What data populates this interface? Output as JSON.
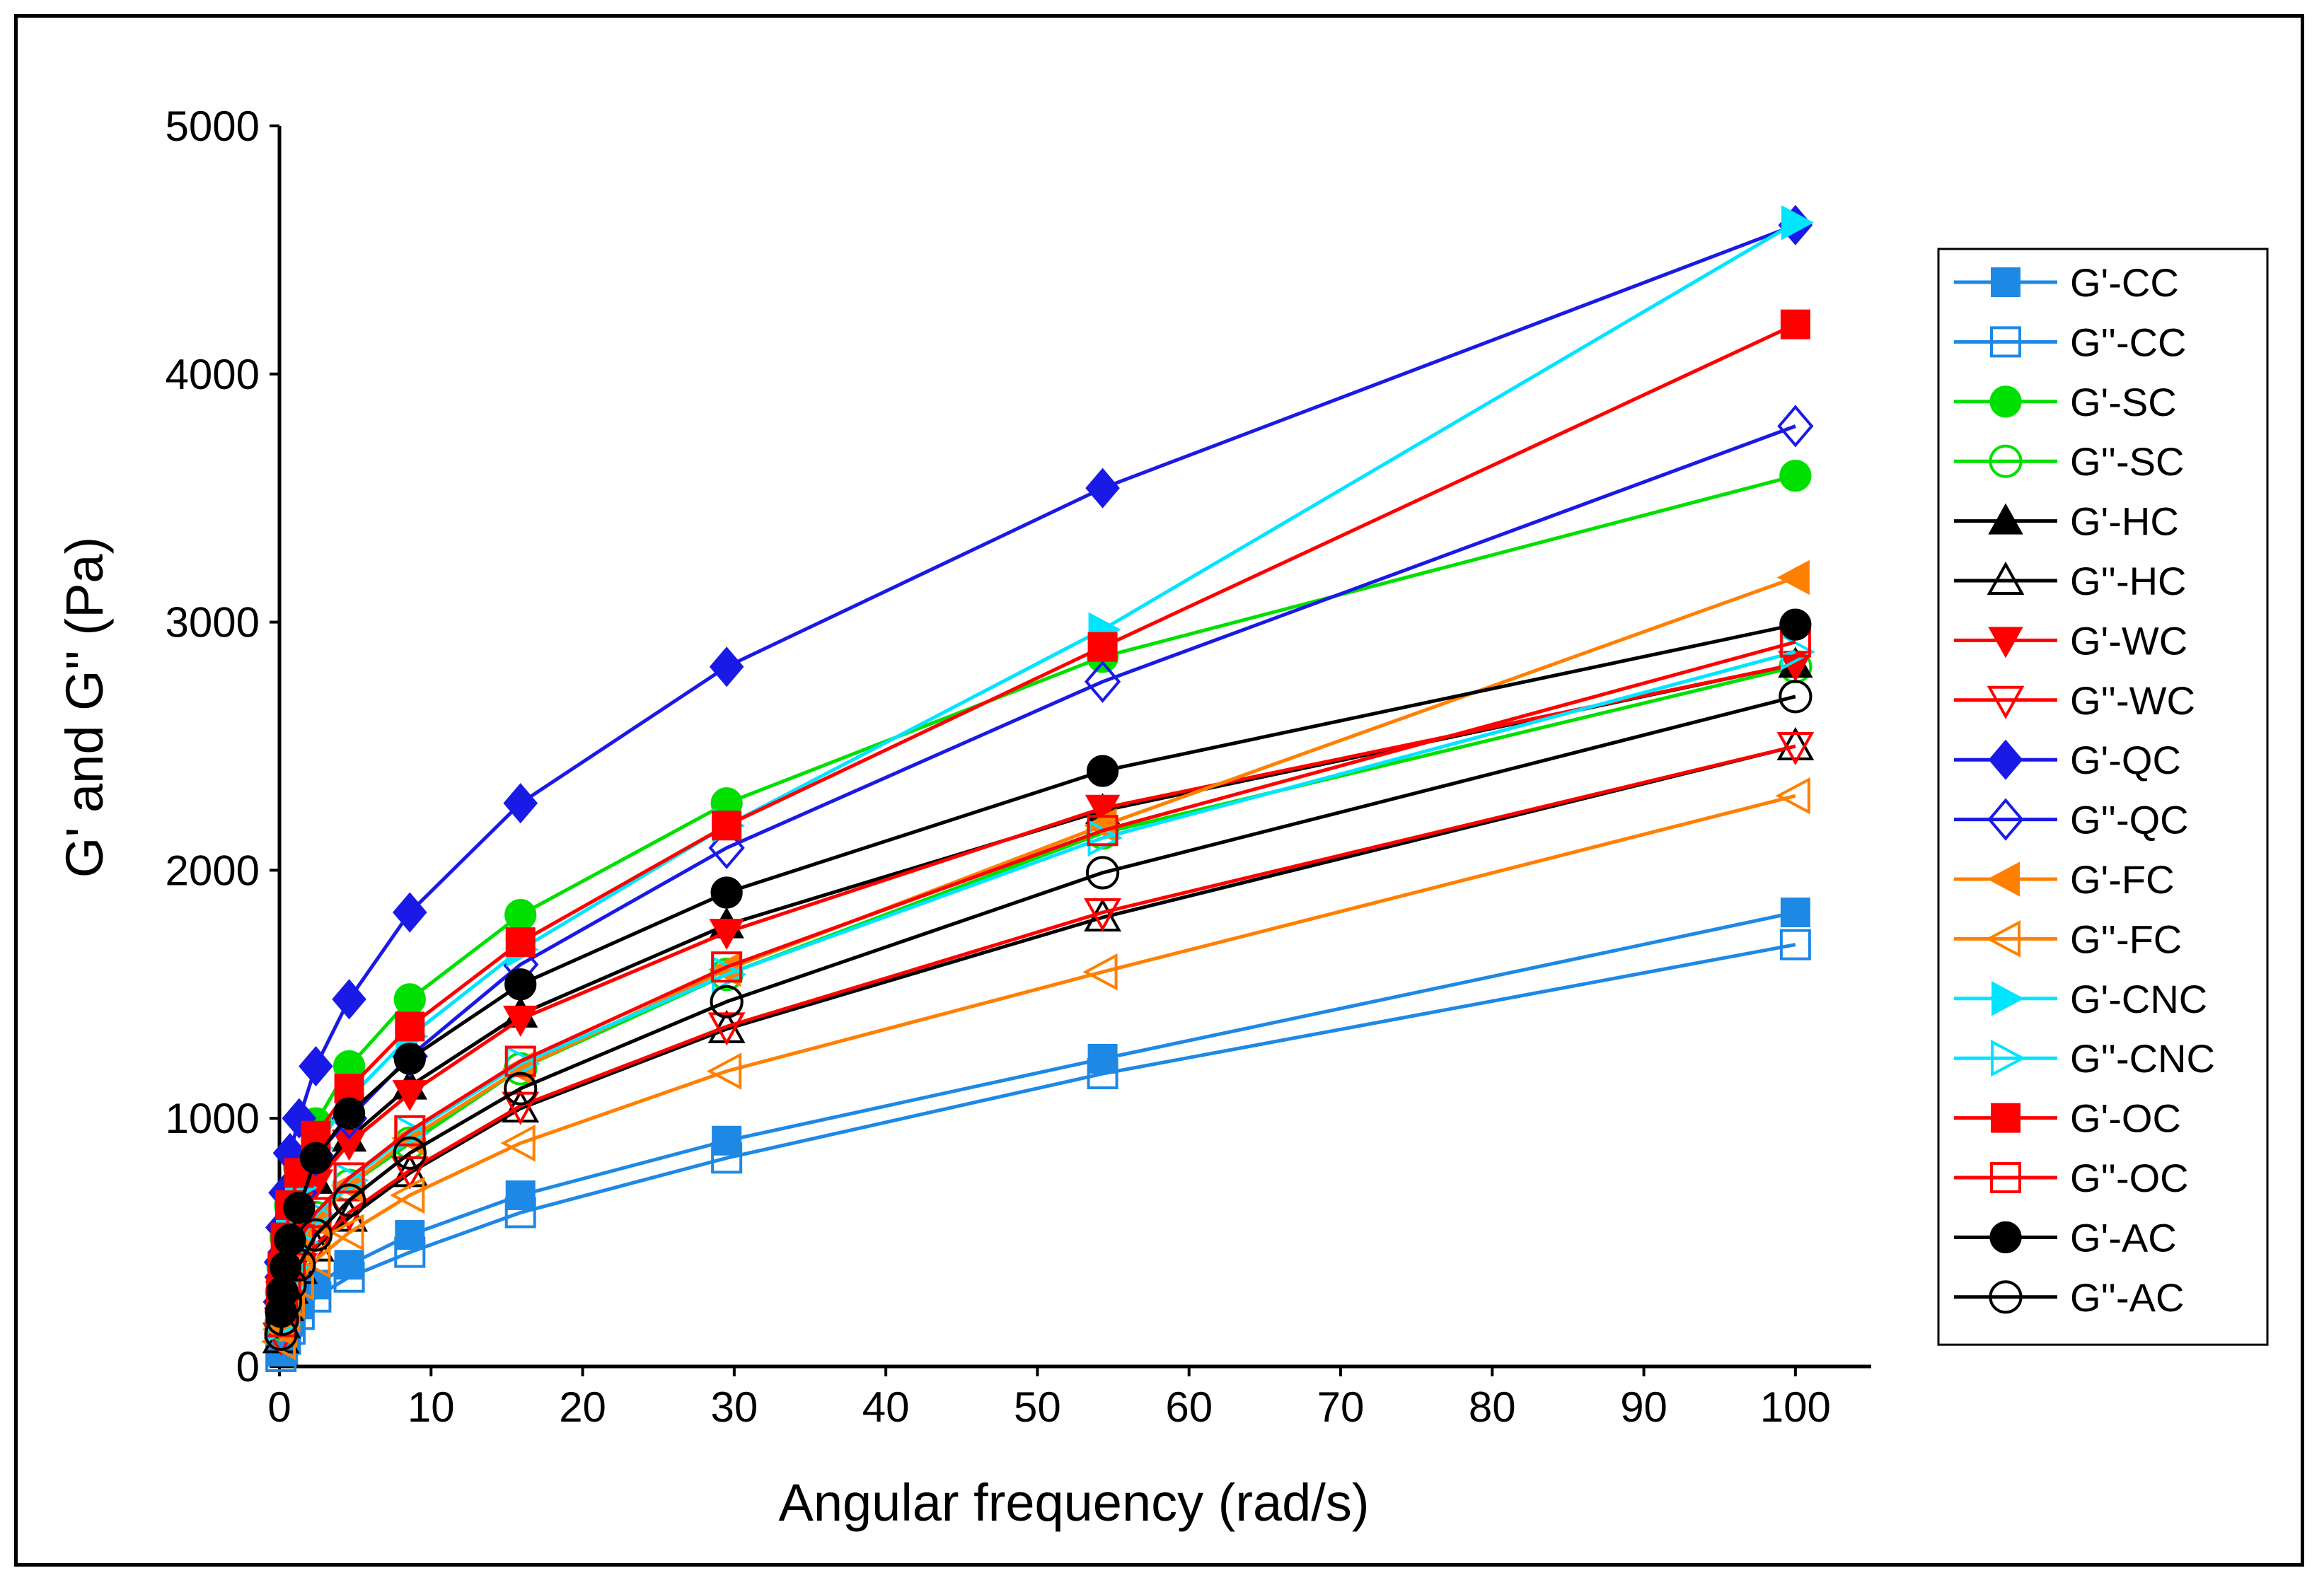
{
  "chart_data": {
    "type": "line",
    "title": "",
    "xlabel": "Angular frequency (rad/s)",
    "ylabel": "G' and G'' (Pa)",
    "xlim": [
      0,
      105
    ],
    "ylim": [
      0,
      5000
    ],
    "xticks": [
      0,
      10,
      20,
      30,
      40,
      50,
      60,
      70,
      80,
      90,
      100
    ],
    "yticks": [
      0,
      1000,
      2000,
      3000,
      4000,
      5000
    ],
    "grid": false,
    "legend_position": "right",
    "x": [
      0.1,
      0.2,
      0.4,
      0.7,
      1.3,
      2.4,
      4.6,
      8.6,
      15.9,
      29.5,
      54.3,
      100
    ],
    "series": [
      {
        "name": "G'-CC",
        "color": "#1e88e5",
        "marker": "square",
        "filled": true,
        "values": [
          60,
          90,
          130,
          180,
          250,
          330,
          410,
          530,
          690,
          910,
          1240,
          1830
        ]
      },
      {
        "name": "G''-CC",
        "color": "#1e88e5",
        "marker": "square",
        "filled": false,
        "values": [
          40,
          70,
          110,
          150,
          210,
          280,
          360,
          460,
          620,
          840,
          1180,
          1700
        ]
      },
      {
        "name": "G'-SC",
        "color": "#00e000",
        "marker": "circle",
        "filled": true,
        "values": [
          300,
          400,
          520,
          650,
          800,
          980,
          1210,
          1480,
          1820,
          2270,
          2860,
          3590
        ]
      },
      {
        "name": "G''-SC",
        "color": "#00e000",
        "marker": "circle",
        "filled": false,
        "values": [
          170,
          240,
          320,
          400,
          500,
          600,
          730,
          900,
          1200,
          1580,
          2150,
          2820
        ]
      },
      {
        "name": "G'-HC",
        "color": "#000000",
        "marker": "triangle-up",
        "filled": true,
        "values": [
          200,
          280,
          380,
          480,
          600,
          750,
          920,
          1130,
          1420,
          1780,
          2240,
          2830
        ]
      },
      {
        "name": "G''-HC",
        "color": "#000000",
        "marker": "triangle-up",
        "filled": false,
        "values": [
          110,
          170,
          240,
          310,
          390,
          480,
          600,
          780,
          1040,
          1360,
          1810,
          2500
        ]
      },
      {
        "name": "G'-WC",
        "color": "#ff0000",
        "marker": "triangle-down",
        "filled": true,
        "values": [
          210,
          290,
          390,
          490,
          610,
          740,
          900,
          1100,
          1400,
          1750,
          2250,
          2830
        ]
      },
      {
        "name": "G''-WC",
        "color": "#ff0000",
        "marker": "triangle-down",
        "filled": false,
        "values": [
          120,
          180,
          250,
          320,
          400,
          490,
          620,
          790,
          1050,
          1370,
          1830,
          2500
        ]
      },
      {
        "name": "G'-QC",
        "color": "#1a1ae6",
        "marker": "diamond",
        "filled": true,
        "values": [
          420,
          560,
          700,
          860,
          1000,
          1210,
          1480,
          1830,
          2270,
          2820,
          3540,
          4600
        ]
      },
      {
        "name": "G''-QC",
        "color": "#1a1ae6",
        "marker": "diamond",
        "filled": false,
        "values": [
          260,
          360,
          460,
          560,
          700,
          850,
          1000,
          1250,
          1620,
          2090,
          2760,
          3790
        ]
      },
      {
        "name": "G'-FC",
        "color": "#ff8000",
        "marker": "triangle-left",
        "filled": true,
        "values": [
          150,
          220,
          300,
          380,
          480,
          590,
          730,
          920,
          1200,
          1600,
          2180,
          3180
        ]
      },
      {
        "name": "G''-FC",
        "color": "#ff8000",
        "marker": "triangle-left",
        "filled": false,
        "values": [
          100,
          150,
          210,
          270,
          340,
          430,
          540,
          690,
          900,
          1190,
          1590,
          2300
        ]
      },
      {
        "name": "G'-CNC",
        "color": "#00e5ff",
        "marker": "triangle-right",
        "filled": true,
        "values": [
          260,
          350,
          460,
          580,
          720,
          880,
          1080,
          1330,
          1680,
          2180,
          2970,
          4610
        ]
      },
      {
        "name": "G''-CNC",
        "color": "#00e5ff",
        "marker": "triangle-right",
        "filled": false,
        "values": [
          170,
          240,
          320,
          400,
          500,
          610,
          750,
          940,
          1220,
          1580,
          2130,
          2880
        ]
      },
      {
        "name": "G'-OC",
        "color": "#ff0000",
        "marker": "square",
        "filled": true,
        "values": [
          300,
          400,
          520,
          650,
          780,
          930,
          1120,
          1370,
          1710,
          2180,
          2900,
          4200
        ]
      },
      {
        "name": "G''-OC",
        "color": "#ff0000",
        "marker": "square",
        "filled": false,
        "values": [
          180,
          250,
          330,
          410,
          510,
          620,
          760,
          950,
          1230,
          1610,
          2160,
          2920
        ]
      },
      {
        "name": "G'-AC",
        "color": "#000000",
        "marker": "circle",
        "filled": true,
        "values": [
          220,
          300,
          400,
          510,
          640,
          840,
          1020,
          1240,
          1540,
          1910,
          2400,
          2990
        ]
      },
      {
        "name": "G''-AC",
        "color": "#000000",
        "marker": "circle",
        "filled": false,
        "values": [
          130,
          190,
          260,
          330,
          410,
          530,
          670,
          860,
          1120,
          1470,
          1990,
          2700
        ]
      }
    ]
  }
}
